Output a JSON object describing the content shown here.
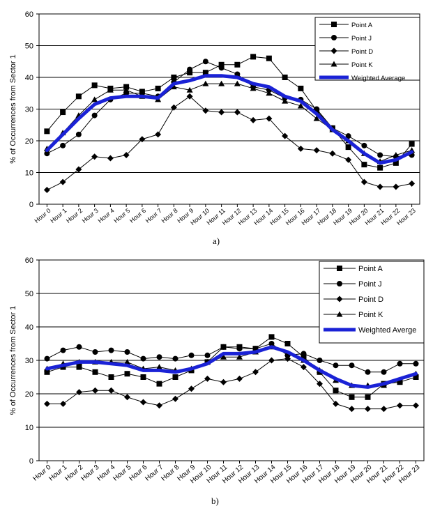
{
  "chart_data": [
    {
      "type": "line",
      "panel_label": "a)",
      "ylabel": "% of Occurrences from Sector 1",
      "ylim": [
        0,
        60
      ],
      "yticks": [
        0,
        10,
        20,
        30,
        40,
        50,
        60
      ],
      "grid": "horizontal",
      "legend_position": "top-right",
      "categories": [
        "Hour 0",
        "Hour 1",
        "Hour 2",
        "Hour 3",
        "Hour 4",
        "Hour 5",
        "Hour 6",
        "Hour 7",
        "Hour 8",
        "Hour 9",
        "Hour 10",
        "Hour 11",
        "Hour 12",
        "Hour 13",
        "Hour 14",
        "Hour 15",
        "Hour 16",
        "Hour 17",
        "Hour 18",
        "Hour 19",
        "Hour 20",
        "Hour 21",
        "Hour 22",
        "Hour 23"
      ],
      "series": [
        {
          "name": "Point A",
          "marker": "square",
          "color": "#000000",
          "values": [
            23,
            29,
            34,
            37.5,
            36.5,
            37,
            35.5,
            36.5,
            40,
            41.5,
            41.5,
            44,
            44,
            46.5,
            46,
            40,
            36.5,
            29.5,
            24,
            18,
            12.5,
            11.5,
            13,
            19
          ]
        },
        {
          "name": "Point J",
          "marker": "circle",
          "color": "#000000",
          "values": [
            16,
            18.5,
            22,
            28,
            33,
            35,
            35,
            34,
            38.5,
            42.5,
            45,
            43,
            41,
            37,
            36,
            33.5,
            33,
            30,
            24,
            21.5,
            18.5,
            15.5,
            15,
            15.5
          ]
        },
        {
          "name": "Point D",
          "marker": "diamond",
          "color": "#000000",
          "values": [
            4.5,
            7,
            11,
            15,
            14.5,
            15.5,
            20.5,
            22,
            30.5,
            34,
            29.5,
            29,
            29,
            26.5,
            27,
            21.5,
            17.5,
            17,
            16,
            14,
            7,
            5.5,
            5.5,
            6.5
          ]
        },
        {
          "name": "Point K",
          "marker": "triangle",
          "color": "#000000",
          "values": [
            17.5,
            22.5,
            28,
            33,
            36,
            36,
            34,
            33,
            37,
            36,
            38,
            38,
            38,
            36.5,
            35,
            32.5,
            31,
            27,
            23.5,
            20,
            16,
            13.5,
            15.5,
            17
          ]
        },
        {
          "name": "Weighted Average",
          "marker": "none",
          "color": "#1a22d6",
          "values": [
            17,
            22,
            27,
            31.5,
            33.5,
            34,
            34,
            33.5,
            38,
            39,
            40.5,
            40.5,
            40,
            38,
            37,
            34,
            32.5,
            28.5,
            23.5,
            20,
            16,
            13,
            14,
            16.5
          ]
        }
      ]
    },
    {
      "type": "line",
      "panel_label": "b)",
      "ylabel": "% of Occurrences from Sector 1",
      "ylim": [
        0,
        60
      ],
      "yticks": [
        0,
        10,
        20,
        30,
        40,
        50,
        60
      ],
      "grid": "horizontal",
      "legend_position": "top-right",
      "categories": [
        "Hour 0",
        "Hour 1",
        "Hour 2",
        "Hour 3",
        "Hour 4",
        "Hour 5",
        "Hour 6",
        "Hour 7",
        "Hour 8",
        "Hour 9",
        "Hour 10",
        "Hour 11",
        "Hour 12",
        "Hour 13",
        "Hour 14",
        "Hour 15",
        "Hour 16",
        "Hour 17",
        "Hour 18",
        "Hour 19",
        "Hour 20",
        "Hour 21",
        "Hour 22",
        "Hour 23"
      ],
      "series": [
        {
          "name": "Point A",
          "marker": "square",
          "color": "#000000",
          "values": [
            26.5,
            28,
            28,
            26.5,
            25,
            26,
            25,
            23,
            25,
            27,
            29.5,
            34,
            34,
            33.5,
            37,
            35,
            31,
            26.5,
            21,
            19,
            19,
            23,
            23.5,
            25
          ]
        },
        {
          "name": "Point J",
          "marker": "circle",
          "color": "#000000",
          "values": [
            30.5,
            33,
            34,
            32.5,
            33,
            32.5,
            30.5,
            31,
            30.5,
            31.5,
            31.5,
            34,
            33.5,
            33.5,
            35,
            31.5,
            32,
            30,
            28.5,
            28.5,
            26.5,
            26.5,
            29,
            29
          ]
        },
        {
          "name": "Point D",
          "marker": "diamond",
          "color": "#000000",
          "values": [
            17,
            17,
            20.5,
            21,
            21,
            19,
            17.5,
            16.5,
            18.5,
            21.5,
            24.5,
            23.5,
            24.5,
            26.5,
            30,
            30.5,
            28,
            23,
            17,
            15.5,
            15.5,
            15.5,
            16.5,
            16.5
          ]
        },
        {
          "name": "Point K",
          "marker": "triangle",
          "color": "#000000",
          "values": [
            27.5,
            29,
            29.5,
            29.5,
            29.5,
            29.5,
            27.5,
            28,
            27,
            27.5,
            29.5,
            31,
            31,
            32.5,
            34,
            32,
            30,
            27,
            24,
            22.5,
            22.5,
            22.5,
            24,
            26
          ]
        },
        {
          "name": "Weighted Averge",
          "marker": "none",
          "color": "#1a22d6",
          "values": [
            27.5,
            28.5,
            29.5,
            29.5,
            29,
            28.5,
            27,
            27,
            26.5,
            27.5,
            29,
            32,
            32,
            32.5,
            34,
            32.5,
            30,
            27,
            24.5,
            22.5,
            22,
            23,
            24.5,
            26
          ]
        }
      ]
    }
  ]
}
